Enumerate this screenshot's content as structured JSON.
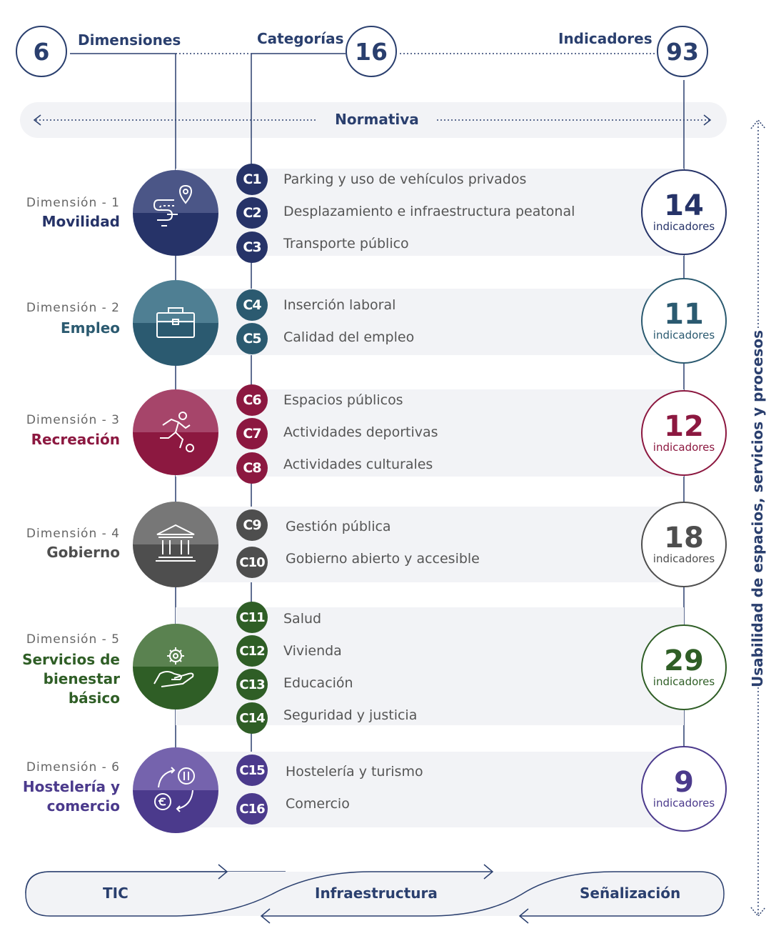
{
  "header": {
    "dimensiones": {
      "count": "6",
      "label": "Dimensiones"
    },
    "categorias": {
      "count": "16",
      "label": "Categorías"
    },
    "indicadores": {
      "count": "93",
      "label": "Indicadores"
    }
  },
  "normativa": "Normativa",
  "side_label": "Usabilidad de espacios, servicios y procesos",
  "dimensions": [
    {
      "label": "Dimensión - 1",
      "name": "Movilidad",
      "icon": "route-pin-icon",
      "color": "#263368",
      "count": "14",
      "count_label": "indicadores",
      "categories": [
        {
          "code": "C1",
          "name": "Parking y uso de vehículos privados"
        },
        {
          "code": "C2",
          "name": "Desplazamiento e infraestructura peatonal"
        },
        {
          "code": "C3",
          "name": "Transporte público"
        }
      ]
    },
    {
      "label": "Dimensión - 2",
      "name": "Empleo",
      "icon": "briefcase-icon",
      "color": "#2b5a70",
      "count": "11",
      "count_label": "indicadores",
      "categories": [
        {
          "code": "C4",
          "name": "Inserción laboral"
        },
        {
          "code": "C5",
          "name": "Calidad del empleo"
        }
      ]
    },
    {
      "label": "Dimensión - 3",
      "name": "Recreación",
      "icon": "soccer-player-icon",
      "color": "#8c1840",
      "count": "12",
      "count_label": "indicadores",
      "categories": [
        {
          "code": "C6",
          "name": "Espacios públicos"
        },
        {
          "code": "C7",
          "name": "Actividades deportivas"
        },
        {
          "code": "C8",
          "name": "Actividades culturales"
        }
      ]
    },
    {
      "label": "Dimensión - 4",
      "name": "Gobierno",
      "icon": "government-building-icon",
      "color": "#4e4e4e",
      "count": "18",
      "count_label": "indicadores",
      "categories": [
        {
          "code": "C9",
          "name": "Gestión pública"
        },
        {
          "code": "C10",
          "name": "Gobierno abierto y accesible"
        }
      ]
    },
    {
      "label": "Dimensión - 5",
      "name": "Servicios de bienestar básico",
      "name_lines": [
        "Servicios de",
        "bienestar",
        "básico"
      ],
      "icon": "gear-hand-icon",
      "color": "#2f5e26",
      "count": "29",
      "count_label": "indicadores",
      "categories": [
        {
          "code": "C11",
          "name": "Salud"
        },
        {
          "code": "C12",
          "name": "Vivienda"
        },
        {
          "code": "C13",
          "name": "Educación"
        },
        {
          "code": "C14",
          "name": "Seguridad y justicia"
        }
      ]
    },
    {
      "label": "Dimensión - 6",
      "name": "Hostelería y comercio",
      "name_lines": [
        "Hostelería y",
        "comercio"
      ],
      "icon": "commerce-cycle-icon",
      "color": "#4b3a8c",
      "count": "9",
      "count_label": "indicadores",
      "categories": [
        {
          "code": "C15",
          "name": "Hostelería y turismo"
        },
        {
          "code": "C16",
          "name": "Comercio"
        }
      ]
    }
  ],
  "footer": [
    "TIC",
    "Infraestructura",
    "Señalización"
  ]
}
